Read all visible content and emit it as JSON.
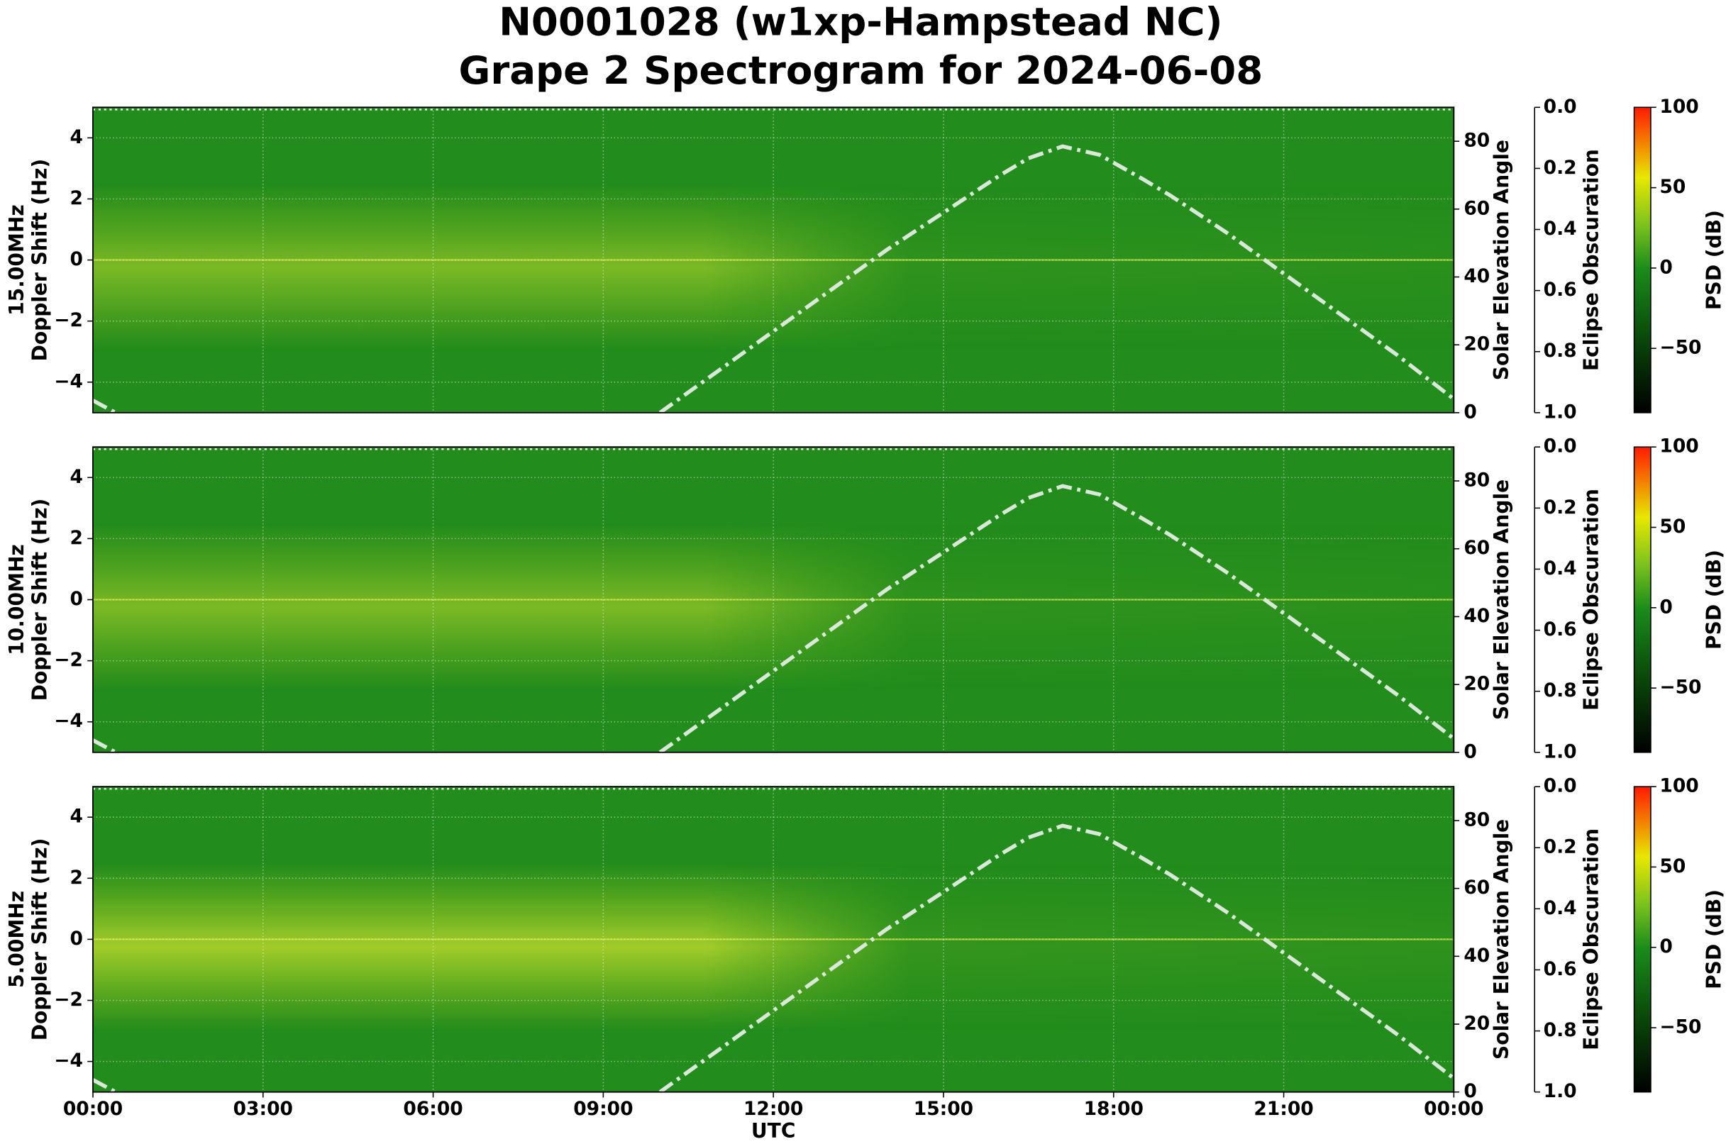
{
  "title": [
    "N0001028 (w1xp-Hampstead NC)",
    "Grape 2 Spectrogram for 2024-06-08"
  ],
  "x_axis": {
    "label": "UTC",
    "xlim": [
      0,
      24
    ],
    "xticks": [
      {
        "value": 0,
        "label": "00:00"
      },
      {
        "value": 3,
        "label": "03:00"
      },
      {
        "value": 6,
        "label": "06:00"
      },
      {
        "value": 9,
        "label": "09:00"
      },
      {
        "value": 12,
        "label": "12:00"
      },
      {
        "value": 15,
        "label": "15:00"
      },
      {
        "value": 18,
        "label": "18:00"
      },
      {
        "value": 21,
        "label": "21:00"
      },
      {
        "value": 24,
        "label": "00:00"
      }
    ]
  },
  "chart_data": [
    {
      "type": "spectrogram",
      "ylabel": [
        "15.00MHz",
        "Doppler Shift (Hz)"
      ],
      "ylim": [
        -5,
        5
      ],
      "yticks": [
        {
          "value": -4,
          "label": "−4"
        },
        {
          "value": -2,
          "label": "−2"
        },
        0,
        2,
        4
      ],
      "y2label": "Solar Elevation Angle",
      "y2lim": [
        0,
        90
      ],
      "y2ticks": [
        0,
        20,
        40,
        60,
        80
      ],
      "y3label": "Eclipse Obscuration",
      "y3lim": [
        1,
        0
      ],
      "y3ticks": [
        {
          "value": 0,
          "label": "0.0"
        },
        {
          "value": 0.2,
          "label": "0.2"
        },
        {
          "value": 0.4,
          "label": "0.4"
        },
        {
          "value": 0.6,
          "label": "0.6"
        },
        {
          "value": 0.8,
          "label": "0.8"
        },
        {
          "value": 1,
          "label": "1.0"
        }
      ],
      "colorbar": {
        "label": "PSD (dB)",
        "lim": [
          -90,
          100
        ],
        "ticks": [
          {
            "value": -50,
            "label": "−50"
          },
          0,
          50,
          100
        ]
      },
      "grid": true,
      "series": [
        {
          "name": "Solar Elevation Angle",
          "color": "#d9e8d9",
          "axis": "y2",
          "x": [
            0,
            0.4,
            5,
            10,
            11,
            12,
            13,
            14,
            15,
            16,
            16.5,
            17.1,
            17.75,
            18.5,
            19,
            20,
            21,
            22,
            23,
            24
          ],
          "values": [
            3.6,
            0,
            null,
            0,
            12,
            24,
            36,
            48,
            59,
            70,
            75,
            78.5,
            76,
            69,
            64,
            53,
            41,
            29,
            17,
            4
          ]
        }
      ]
    },
    {
      "type": "spectrogram",
      "ylabel": [
        "10.00MHz",
        "Doppler Shift (Hz)"
      ],
      "ylim": [
        -5,
        5
      ],
      "yticks": [
        {
          "value": -4,
          "label": "−4"
        },
        {
          "value": -2,
          "label": "−2"
        },
        0,
        2,
        4
      ],
      "y2label": "Solar Elevation Angle",
      "y2lim": [
        0,
        90
      ],
      "y2ticks": [
        0,
        20,
        40,
        60,
        80
      ],
      "y3label": "Eclipse Obscuration",
      "y3lim": [
        1,
        0
      ],
      "y3ticks": [
        {
          "value": 0,
          "label": "0.0"
        },
        {
          "value": 0.2,
          "label": "0.2"
        },
        {
          "value": 0.4,
          "label": "0.4"
        },
        {
          "value": 0.6,
          "label": "0.6"
        },
        {
          "value": 0.8,
          "label": "0.8"
        },
        {
          "value": 1,
          "label": "1.0"
        }
      ],
      "colorbar": {
        "label": "PSD (dB)",
        "lim": [
          -90,
          100
        ],
        "ticks": [
          {
            "value": -50,
            "label": "−50"
          },
          0,
          50,
          100
        ]
      },
      "grid": true,
      "series": [
        {
          "name": "Solar Elevation Angle",
          "color": "#d9e8d9",
          "axis": "y2",
          "x": [
            0,
            0.4,
            5,
            10,
            11,
            12,
            13,
            14,
            15,
            16,
            16.5,
            17.1,
            17.75,
            18.5,
            19,
            20,
            21,
            22,
            23,
            24
          ],
          "values": [
            3.6,
            0,
            null,
            0,
            12,
            24,
            36,
            48,
            59,
            70,
            75,
            78.5,
            76,
            69,
            64,
            53,
            41,
            29,
            17,
            4
          ]
        }
      ]
    },
    {
      "type": "spectrogram",
      "ylabel": [
        "5.00MHz",
        "Doppler Shift (Hz)"
      ],
      "ylim": [
        -5,
        5
      ],
      "yticks": [
        {
          "value": -4,
          "label": "−4"
        },
        {
          "value": -2,
          "label": "−2"
        },
        0,
        2,
        4
      ],
      "y2label": "Solar Elevation Angle",
      "y2lim": [
        0,
        90
      ],
      "y2ticks": [
        0,
        20,
        40,
        60,
        80
      ],
      "y3label": "Eclipse Obscuration",
      "y3lim": [
        1,
        0
      ],
      "y3ticks": [
        {
          "value": 0,
          "label": "0.0"
        },
        {
          "value": 0.2,
          "label": "0.2"
        },
        {
          "value": 0.4,
          "label": "0.4"
        },
        {
          "value": 0.6,
          "label": "0.6"
        },
        {
          "value": 0.8,
          "label": "0.8"
        },
        {
          "value": 1,
          "label": "1.0"
        }
      ],
      "colorbar": {
        "label": "PSD (dB)",
        "lim": [
          -90,
          100
        ],
        "ticks": [
          {
            "value": -50,
            "label": "−50"
          },
          0,
          50,
          100
        ]
      },
      "grid": true,
      "series": [
        {
          "name": "Solar Elevation Angle",
          "color": "#d9e8d9",
          "axis": "y2",
          "x": [
            0,
            0.4,
            5,
            10,
            11,
            12,
            13,
            14,
            15,
            16,
            16.5,
            17.1,
            17.75,
            18.5,
            19,
            20,
            21,
            22,
            23,
            24
          ],
          "values": [
            3.6,
            0,
            null,
            0,
            12,
            24,
            36,
            48,
            59,
            70,
            75,
            78.5,
            76,
            69,
            64,
            53,
            41,
            29,
            17,
            4
          ]
        }
      ]
    }
  ]
}
